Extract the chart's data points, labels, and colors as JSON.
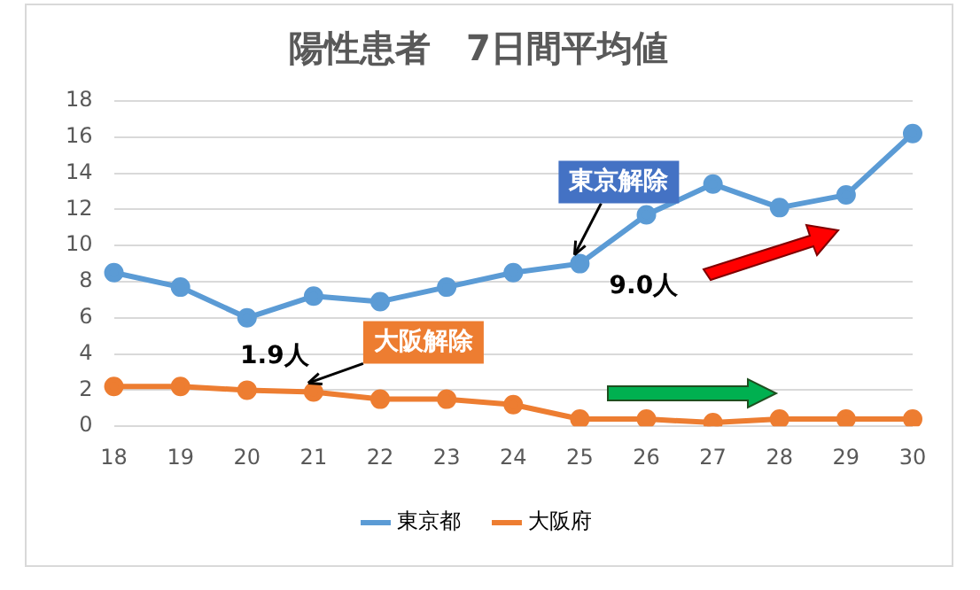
{
  "chart_data": {
    "type": "line",
    "title": "陽性患者　7日間平均値",
    "categories": [
      "18",
      "19",
      "20",
      "21",
      "22",
      "23",
      "24",
      "25",
      "26",
      "27",
      "28",
      "29",
      "30"
    ],
    "series": [
      {
        "name": "東京都",
        "color": "#5b9bd5",
        "values": [
          8.5,
          7.7,
          6.0,
          7.2,
          6.9,
          7.7,
          8.5,
          9.0,
          11.7,
          13.4,
          12.1,
          12.8,
          16.2
        ]
      },
      {
        "name": "大阪府",
        "color": "#ed7d31",
        "values": [
          2.2,
          2.2,
          2.0,
          1.9,
          1.5,
          1.5,
          1.2,
          0.4,
          0.4,
          0.2,
          0.4,
          0.4,
          0.4
        ]
      }
    ],
    "ylim": [
      0,
      18
    ],
    "yticks": [
      0,
      2,
      4,
      6,
      8,
      10,
      12,
      14,
      16,
      18
    ],
    "grid": "y",
    "legend": "bottom",
    "marker": "circle",
    "line_style": "solid",
    "annotations": [
      {
        "text": "東京解除",
        "x": "25",
        "y": 9.0
      },
      {
        "text": "9.0人",
        "x": "25",
        "y": 9.0
      },
      {
        "text": "大阪解除",
        "x": "21",
        "y": 1.9
      },
      {
        "text": "1.9人",
        "x": "21",
        "y": 1.9
      }
    ]
  }
}
